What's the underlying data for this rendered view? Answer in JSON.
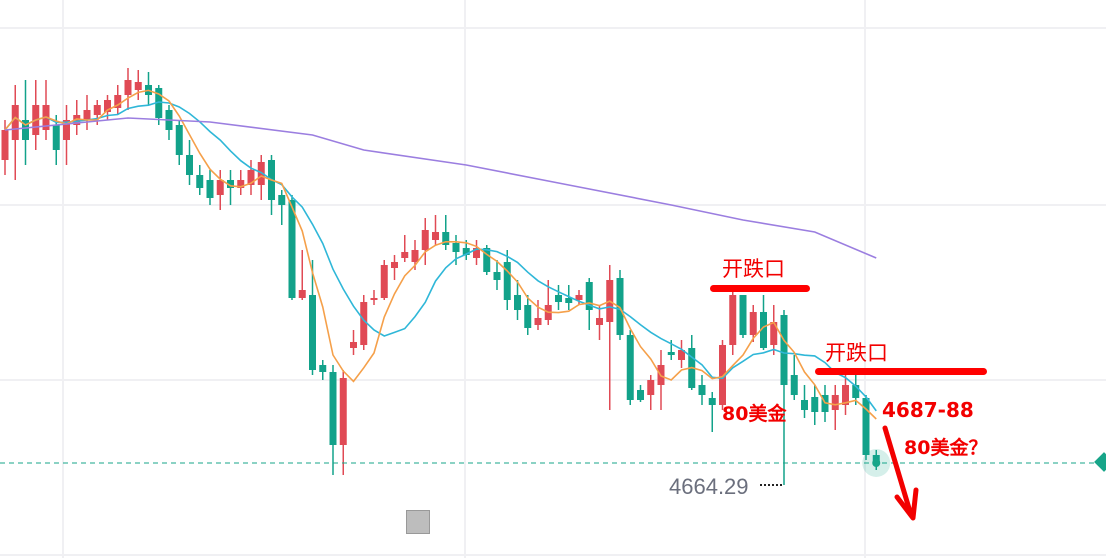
{
  "chart_data": {
    "type": "candlestick",
    "title": "",
    "xlabel": "",
    "ylabel": "",
    "ylim": [
      4627.5,
      4906.5
    ],
    "grid": true,
    "colors": {
      "up": "#e04a55",
      "down": "#12a28a",
      "ma_fast": "#f5a04a",
      "ma_slow": "#2fb7d8",
      "ma_long": "#9b7ee0",
      "annotation": "#f20000",
      "last_price_line": "#17a589"
    },
    "ohlc": [
      [
        4826.5,
        4846.5,
        4819,
        4841.5
      ],
      [
        4836.5,
        4864,
        4816.5,
        4854
      ],
      [
        4846.5,
        4866.5,
        4824,
        4836.5
      ],
      [
        4839,
        4866.5,
        4831.5,
        4854
      ],
      [
        4841.5,
        4866.5,
        4836.5,
        4854
      ],
      [
        4844,
        4849,
        4824,
        4831.5
      ],
      [
        4836.5,
        4854,
        4824,
        4846.5
      ],
      [
        4844,
        4856.5,
        4839,
        4849
      ],
      [
        4846.5,
        4859,
        4841.5,
        4851.5
      ],
      [
        4849,
        4856.5,
        4844,
        4854
      ],
      [
        4850.5,
        4859,
        4846.5,
        4856.5
      ],
      [
        4852.5,
        4864,
        4849,
        4859
      ],
      [
        4859,
        4872.5,
        4851.5,
        4866.5
      ],
      [
        4861.5,
        4871.5,
        4856.5,
        4865.5
      ],
      [
        4864,
        4870.5,
        4854,
        4859
      ],
      [
        4862.5,
        4864,
        4844,
        4847.5
      ],
      [
        4851.5,
        4854,
        4836.5,
        4841.5
      ],
      [
        4844,
        4846.5,
        4824,
        4829
      ],
      [
        4829,
        4836.5,
        4814,
        4819
      ],
      [
        4819,
        4824,
        4809,
        4812.5
      ],
      [
        4816.5,
        4821.5,
        4804,
        4807.5
      ],
      [
        4809,
        4821.5,
        4801.5,
        4816.5
      ],
      [
        4816.5,
        4821.5,
        4804,
        4812.5
      ],
      [
        4812.5,
        4821.5,
        4809,
        4816.5
      ],
      [
        4814,
        4826.5,
        4809,
        4821.5
      ],
      [
        4814,
        4829,
        4806.5,
        4825.5
      ],
      [
        4826.5,
        4829,
        4799,
        4806.5
      ],
      [
        4809,
        4811.5,
        4794,
        4804
      ],
      [
        4806.5,
        4809,
        4756.5,
        4757.5
      ],
      [
        4757.5,
        4781.5,
        4756.5,
        4761.5
      ],
      [
        4759,
        4776.5,
        4719,
        4721.5
      ],
      [
        4724,
        4726.5,
        4716.5,
        4720.5
      ],
      [
        4720.5,
        4724,
        4669,
        4684
      ],
      [
        4684,
        4721.5,
        4669,
        4717.5
      ],
      [
        4732.5,
        4741.5,
        4729,
        4735.5
      ],
      [
        4734,
        4759,
        4731.5,
        4755.5
      ],
      [
        4756.5,
        4761.5,
        4754,
        4757.5
      ],
      [
        4757.5,
        4776.5,
        4756.5,
        4774
      ],
      [
        4772.5,
        4779,
        4766.5,
        4775.5
      ],
      [
        4777.5,
        4789,
        4775.5,
        4780.5
      ],
      [
        4775.5,
        4786.5,
        4771.5,
        4781.5
      ],
      [
        4781.5,
        4797.5,
        4774,
        4791.5
      ],
      [
        4786.5,
        4799,
        4784,
        4790.5
      ],
      [
        4790.5,
        4799,
        4781.5,
        4784
      ],
      [
        4785,
        4789,
        4774,
        4780.5
      ],
      [
        4782.5,
        4786.5,
        4776.5,
        4779
      ],
      [
        4777.5,
        4786.5,
        4774,
        4782.5
      ],
      [
        4782.5,
        4784,
        4769,
        4770.5
      ],
      [
        4770.5,
        4776.5,
        4761.5,
        4766.5
      ],
      [
        4775.5,
        4781.5,
        4751.5,
        4756.5
      ],
      [
        4759,
        4766.5,
        4746.5,
        4751.5
      ],
      [
        4754,
        4759,
        4739,
        4742.5
      ],
      [
        4744,
        4756.5,
        4741.5,
        4747.5
      ],
      [
        4746.5,
        4766.5,
        4744,
        4754
      ],
      [
        4759,
        4764,
        4751.5,
        4755.5
      ],
      [
        4757.5,
        4764,
        4751.5,
        4755
      ],
      [
        4756.5,
        4761.5,
        4754,
        4759
      ],
      [
        4765.5,
        4767.5,
        4741.5,
        4751.5
      ],
      [
        4744,
        4754,
        4736.5,
        4747.5
      ],
      [
        4745.5,
        4774,
        4701.5,
        4766.5
      ],
      [
        4767.5,
        4771.5,
        4736.5,
        4739
      ],
      [
        4739,
        4741.5,
        4704,
        4706.5
      ],
      [
        4711.5,
        4714,
        4705.5,
        4706.5
      ],
      [
        4709,
        4719,
        4701.5,
        4716.5
      ],
      [
        4714,
        4731.5,
        4701.5,
        4724
      ],
      [
        4730.5,
        4736.5,
        4726.5,
        4729
      ],
      [
        4726.5,
        4736.5,
        4722.5,
        4731.5
      ],
      [
        4732.5,
        4739,
        4711.5,
        4712.5
      ],
      [
        4714,
        4719,
        4704,
        4709
      ],
      [
        4707.5,
        4710.5,
        4690.5,
        4704
      ],
      [
        4704,
        4736.5,
        4701.5,
        4734
      ],
      [
        4734,
        4761.5,
        4729,
        4759
      ],
      [
        4759,
        4759,
        4737.5,
        4739
      ],
      [
        4739,
        4754,
        4735.5,
        4750.5
      ],
      [
        4750.5,
        4759,
        4731.5,
        4732.5
      ],
      [
        4734,
        4754,
        4729,
        4745.5
      ],
      [
        4749,
        4751.5,
        4664,
        4714
      ],
      [
        4719,
        4729,
        4706.5,
        4709
      ],
      [
        4706.5,
        4714,
        4697.5,
        4701.5
      ],
      [
        4708,
        4714,
        4694,
        4700.5
      ],
      [
        4709,
        4714,
        4695.5,
        4700.5
      ],
      [
        4701.5,
        4714,
        4691.5,
        4709
      ],
      [
        4704,
        4719,
        4699,
        4714
      ],
      [
        4714,
        4719,
        4704,
        4707.5
      ],
      [
        4707.5,
        4709,
        4676.5,
        4679
      ],
      [
        4679,
        4681.5,
        4671.5,
        4675.5
      ]
    ],
    "ma_long_points": [
      [
        0,
        4841.5
      ],
      [
        12,
        4847.5
      ],
      [
        20,
        4845.5
      ],
      [
        30,
        4839
      ],
      [
        35,
        4831.5
      ],
      [
        45,
        4824
      ],
      [
        55,
        4814
      ],
      [
        65,
        4804
      ],
      [
        72,
        4796.5
      ],
      [
        79,
        4790.5
      ],
      [
        85,
        4777.5
      ]
    ],
    "ma_fast_period": 5,
    "ma_slow_period": 10,
    "last_price": 4675,
    "low_marker": "4664.29"
  },
  "annotations": {
    "gap1": "开跌口",
    "gap2": "开跌口",
    "move1": "80美金",
    "target": "4687-88",
    "move2": "80美金？"
  }
}
